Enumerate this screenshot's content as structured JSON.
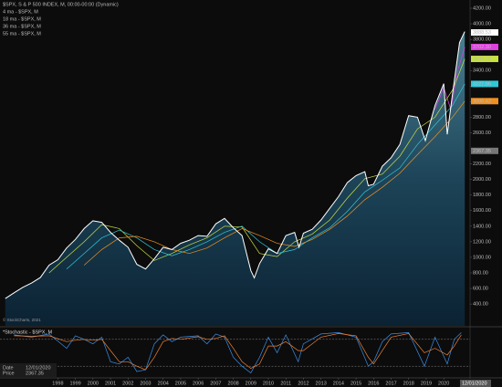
{
  "chart_data": {
    "type": "line",
    "title": "$SPX, S & P 500 INDEX, M, 00:00-00:00 (Dynamic)",
    "copyright": "© StockCharts, 2021",
    "xlim": [
      1994.7,
      2021.5
    ],
    "xticks": [
      1998,
      1999,
      2000,
      2001,
      2002,
      2003,
      2004,
      2005,
      2006,
      2007,
      2008,
      2009,
      2010,
      2011,
      2012,
      2013,
      2014,
      2015,
      2016,
      2017,
      2018,
      2019,
      2020
    ],
    "ylim": [
      120,
      4200
    ],
    "yticks": [
      {
        "value": 400,
        "label": "400.00"
      },
      {
        "value": 600,
        "label": "600.00"
      },
      {
        "value": 800,
        "label": "800.00"
      },
      {
        "value": 1000,
        "label": "1000.00"
      },
      {
        "value": 1200,
        "label": "1200.00"
      },
      {
        "value": 1400,
        "label": "1400.00"
      },
      {
        "value": 1600,
        "label": "1600.00"
      },
      {
        "value": 1800,
        "label": "1800.00"
      },
      {
        "value": 2000,
        "label": "2000.00"
      },
      {
        "value": 2200,
        "label": "2200.00"
      },
      {
        "value": 2600,
        "label": "2600.00"
      },
      {
        "value": 2800,
        "label": "2800.00"
      },
      {
        "value": 3000,
        "label": "3000.00"
      },
      {
        "value": 3200,
        "label": "3200.00"
      },
      {
        "value": 3400,
        "label": "3400.00"
      },
      {
        "value": 3800,
        "label": "3800.00"
      },
      {
        "value": 4000,
        "label": "4000.00"
      },
      {
        "value": 4200,
        "label": "4200.00"
      }
    ],
    "series": [
      {
        "name": "$SPX, S & P 500 INDEX, M, 00:00-00:00 (Dynamic)",
        "color": "#ffffff",
        "area": true,
        "x": [
          1995.0,
          1995.5,
          1996.0,
          1996.5,
          1997.0,
          1997.5,
          1998.0,
          1998.5,
          1999.0,
          1999.5,
          2000.0,
          2000.5,
          2001.0,
          2001.5,
          2002.0,
          2002.5,
          2003.0,
          2003.5,
          2004.0,
          2004.5,
          2005.0,
          2005.5,
          2006.0,
          2006.5,
          2007.0,
          2007.5,
          2008.0,
          2008.5,
          2009.0,
          2009.2,
          2009.5,
          2010.0,
          2010.5,
          2011.0,
          2011.5,
          2011.75,
          2012.0,
          2012.5,
          2013.0,
          2013.5,
          2014.0,
          2014.5,
          2015.0,
          2015.5,
          2015.7,
          2016.0,
          2016.5,
          2017.0,
          2017.5,
          2018.0,
          2018.5,
          2018.95,
          2019.5,
          2020.0,
          2020.2,
          2020.5,
          2020.9,
          2021.2
        ],
        "values": [
          470,
          545,
          615,
          670,
          740,
          900,
          970,
          1120,
          1230,
          1370,
          1470,
          1450,
          1320,
          1220,
          1130,
          910,
          850,
          980,
          1130,
          1100,
          1180,
          1220,
          1280,
          1270,
          1430,
          1500,
          1380,
          1280,
          830,
          735,
          920,
          1110,
          1050,
          1280,
          1320,
          1130,
          1310,
          1360,
          1480,
          1630,
          1780,
          1960,
          2050,
          2100,
          1920,
          1940,
          2170,
          2280,
          2450,
          2820,
          2800,
          2500,
          2950,
          3230,
          2580,
          3100,
          3760,
          3900
        ],
        "last": 3888.53
      },
      {
        "name": "4 ma - $SPX, M",
        "color": "#e040e0",
        "x": [
          2019.5,
          2020.0,
          2020.4,
          2020.8,
          2021.2
        ],
        "values": [
          2900,
          3180,
          2900,
          3400,
          3702.3
        ],
        "last": {
          "value": 3702.3,
          "label": "3702.30"
        }
      },
      {
        "name": "18 ma - $SPX, M",
        "color": "#c8e040",
        "x": [
          1997.5,
          1998.5,
          1999.5,
          2000.5,
          2001.5,
          2002.5,
          2003.5,
          2004.5,
          2005.5,
          2006.5,
          2007.5,
          2008.5,
          2009.5,
          2010.5,
          2011.5,
          2012.5,
          2013.5,
          2014.5,
          2015.5,
          2016.5,
          2017.5,
          2018.5,
          2019.5,
          2020.5,
          2021.2
        ],
        "values": [
          800,
          1000,
          1200,
          1420,
          1370,
          1150,
          960,
          1050,
          1160,
          1250,
          1400,
          1390,
          1050,
          1010,
          1200,
          1300,
          1480,
          1760,
          2010,
          2070,
          2300,
          2650,
          2800,
          3150,
          3548.79
        ],
        "last": 3548.79
      },
      {
        "name": "36 ma - $SPX, M",
        "color": "#30c8d8",
        "x": [
          1998.5,
          1999.5,
          2000.5,
          2001.5,
          2002.5,
          2003.5,
          2004.5,
          2005.5,
          2006.5,
          2007.5,
          2008.5,
          2009.5,
          2010.5,
          2011.5,
          2012.5,
          2013.5,
          2014.5,
          2015.5,
          2016.5,
          2017.5,
          2018.5,
          2019.5,
          2020.5,
          2021.2
        ],
        "values": [
          850,
          1050,
          1250,
          1350,
          1250,
          1100,
          1020,
          1100,
          1200,
          1320,
          1400,
          1200,
          1050,
          1100,
          1250,
          1380,
          1590,
          1840,
          1990,
          2150,
          2450,
          2700,
          2950,
          3227.96
        ],
        "last": 3227.96
      },
      {
        "name": "55 ma - $SPX, M",
        "color": "#f09020",
        "x": [
          1999.5,
          2000.5,
          2001.5,
          2002.5,
          2003.5,
          2004.5,
          2005.5,
          2006.5,
          2007.5,
          2008.5,
          2009.5,
          2010.5,
          2011.5,
          2012.5,
          2013.5,
          2014.5,
          2015.5,
          2016.5,
          2017.5,
          2018.5,
          2019.5,
          2020.5,
          2021.2
        ],
        "values": [
          900,
          1100,
          1250,
          1270,
          1200,
          1100,
          1050,
          1120,
          1250,
          1370,
          1280,
          1180,
          1140,
          1230,
          1360,
          1530,
          1740,
          1900,
          2080,
          2320,
          2550,
          2800,
          3006.42
        ],
        "last": 3006.42
      }
    ],
    "crosshair": {
      "date_label": "Date",
      "date": "12/01/2020",
      "price_label": "Price",
      "price": 2367.35
    },
    "stochastic": {
      "title": "*Stochastic - $SPX, M",
      "ylim": [
        0,
        100
      ],
      "levels": [
        80,
        20
      ],
      "x": [
        1995.5,
        1996.5,
        1997.5,
        1998.5,
        1999.0,
        1999.5,
        2000.0,
        2000.5,
        2001.0,
        2001.5,
        2002.0,
        2002.5,
        2003.0,
        2003.5,
        2004.0,
        2004.5,
        2005.0,
        2006.0,
        2006.5,
        2007.0,
        2007.5,
        2008.0,
        2008.5,
        2009.0,
        2009.5,
        2010.0,
        2010.5,
        2011.0,
        2011.7,
        2012.0,
        2013.0,
        2014.0,
        2015.0,
        2015.7,
        2016.0,
        2016.5,
        2017.0,
        2018.0,
        2018.9,
        2019.5,
        2020.2,
        2020.6,
        2021.0
      ],
      "series": [
        {
          "color": "#3a8ee8",
          "values": [
            90,
            85,
            92,
            60,
            88,
            80,
            70,
            85,
            30,
            25,
            40,
            8,
            12,
            70,
            90,
            75,
            85,
            88,
            70,
            92,
            85,
            40,
            20,
            5,
            40,
            85,
            50,
            90,
            30,
            70,
            92,
            95,
            85,
            20,
            30,
            75,
            92,
            95,
            20,
            85,
            25,
            80,
            95
          ]
        },
        {
          "color": "#f08030",
          "values": [
            88,
            87,
            88,
            75,
            78,
            80,
            78,
            80,
            55,
            30,
            30,
            20,
            12,
            40,
            75,
            82,
            80,
            86,
            80,
            82,
            88,
            60,
            30,
            15,
            25,
            65,
            65,
            75,
            55,
            55,
            85,
            93,
            88,
            40,
            25,
            55,
            85,
            93,
            50,
            60,
            45,
            65,
            90
          ]
        }
      ]
    }
  }
}
